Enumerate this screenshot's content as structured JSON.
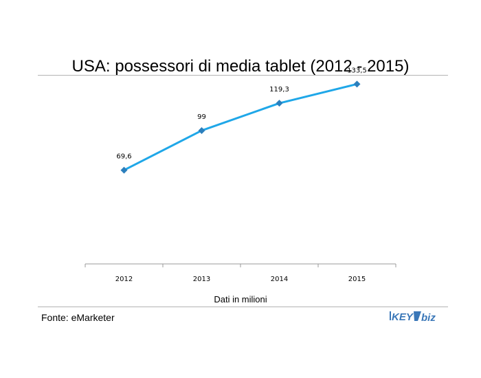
{
  "title": "USA: possessori di media tablet (2012 - 2015)",
  "caption": "Dati in milioni",
  "source": "Fonte: eMarketer",
  "logo": {
    "left_text": "KEY",
    "right_text": "biz",
    "color": "#3a77b8"
  },
  "chart_data": {
    "type": "line",
    "title": "USA: possessori di media tablet (2012 - 2015)",
    "xlabel": "Dati in milioni",
    "ylabel": "",
    "categories": [
      "2012",
      "2013",
      "2014",
      "2015"
    ],
    "series": [
      {
        "values": [
          69.6,
          99,
          119.3,
          133.5
        ],
        "labels": [
          "69,6",
          "99",
          "119,3",
          "133,5"
        ],
        "color": "#1fa7e8",
        "marker_color": "#2b7fbd"
      }
    ],
    "ylim": [
      0,
      150
    ],
    "grid": false,
    "legend": "none"
  }
}
